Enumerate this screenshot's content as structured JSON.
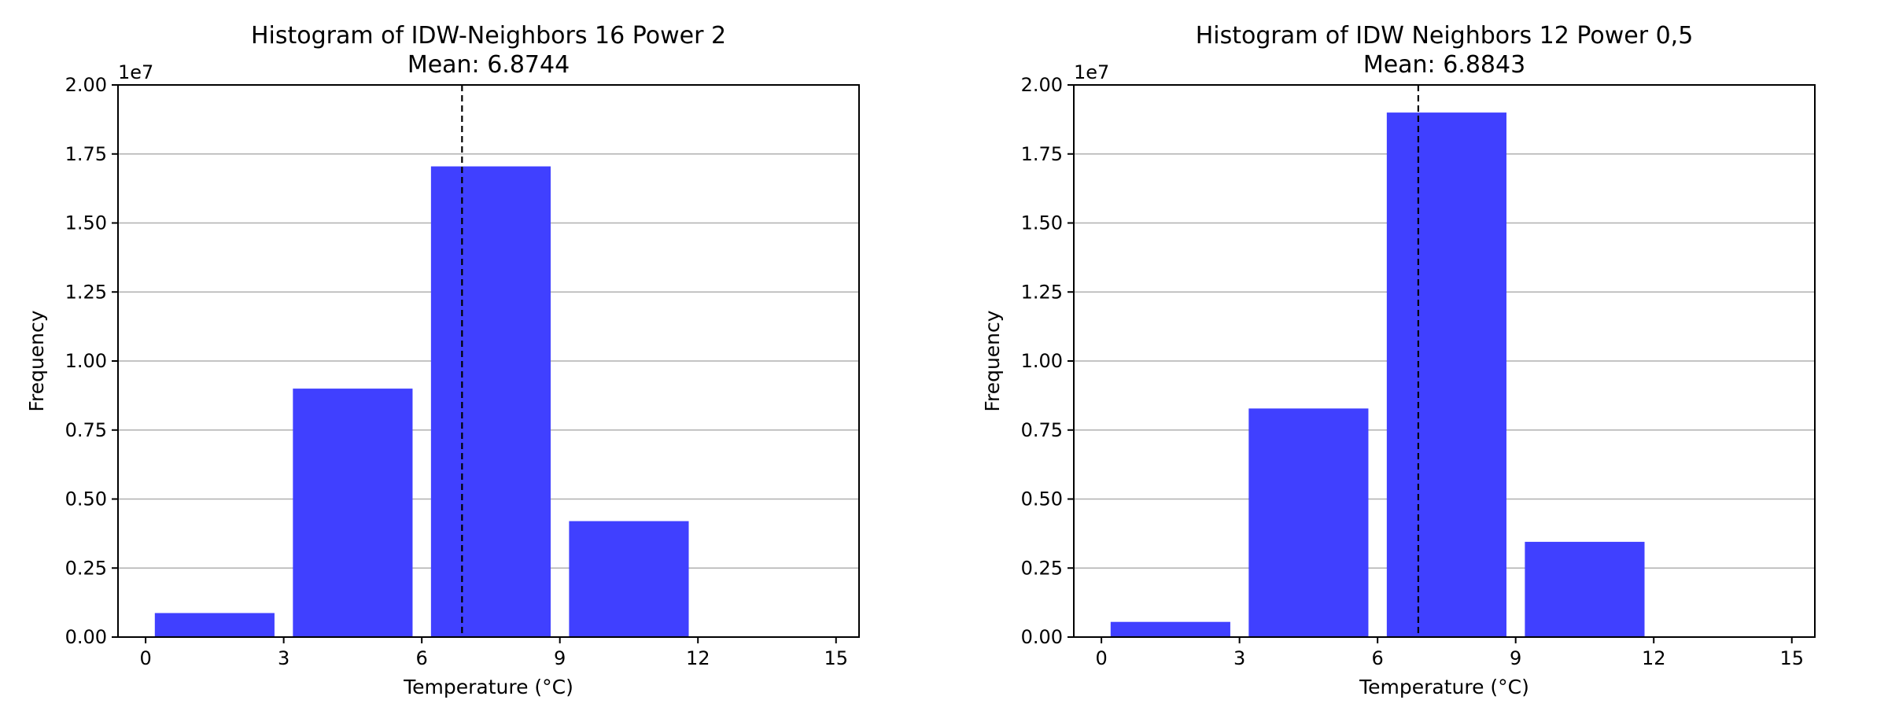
{
  "chart_data": [
    {
      "type": "bar",
      "title": "Histogram of IDW-Neighbors 16 Power 2",
      "subtitle": "Mean: 6.8744",
      "xlabel": "Temperature (°C)",
      "ylabel": "Frequency",
      "y_exponent_label": "1e7",
      "xlim": [
        -0.6,
        15.5
      ],
      "ylim": [
        0,
        2.0
      ],
      "x_ticks": [
        {
          "value": 0,
          "label": "0"
        },
        {
          "value": 3,
          "label": "3"
        },
        {
          "value": 6,
          "label": "6"
        },
        {
          "value": 9,
          "label": "9"
        },
        {
          "value": 12,
          "label": "12"
        },
        {
          "value": 15,
          "label": "15"
        }
      ],
      "y_ticks": [
        {
          "value": 0,
          "label": "0.00"
        },
        {
          "value": 0.25,
          "label": "0.25"
        },
        {
          "value": 0.5,
          "label": "0.50"
        },
        {
          "value": 0.75,
          "label": "0.75"
        },
        {
          "value": 1.0,
          "label": "1.00"
        },
        {
          "value": 1.25,
          "label": "1.25"
        },
        {
          "value": 1.5,
          "label": "1.50"
        },
        {
          "value": 1.75,
          "label": "1.75"
        },
        {
          "value": 2.0,
          "label": "2.00"
        }
      ],
      "grid": "y",
      "bar_color": "#4040ff",
      "mean_line": 6.8744,
      "bins": [
        {
          "x0": 0.2,
          "x1": 2.8,
          "value": 0.087
        },
        {
          "x0": 3.2,
          "x1": 5.8,
          "value": 0.9
        },
        {
          "x0": 6.2,
          "x1": 8.8,
          "value": 1.705
        },
        {
          "x0": 9.2,
          "x1": 11.8,
          "value": 0.42
        }
      ]
    },
    {
      "type": "bar",
      "title": "Histogram of IDW Neighbors 12 Power 0,5",
      "subtitle": "Mean: 6.8843",
      "xlabel": "Temperature (°C)",
      "ylabel": "Frequency",
      "y_exponent_label": "1e7",
      "xlim": [
        -0.6,
        15.5
      ],
      "ylim": [
        0,
        2.0
      ],
      "x_ticks": [
        {
          "value": 0,
          "label": "0"
        },
        {
          "value": 3,
          "label": "3"
        },
        {
          "value": 6,
          "label": "6"
        },
        {
          "value": 9,
          "label": "9"
        },
        {
          "value": 12,
          "label": "12"
        },
        {
          "value": 15,
          "label": "15"
        }
      ],
      "y_ticks": [
        {
          "value": 0,
          "label": "0.00"
        },
        {
          "value": 0.25,
          "label": "0.25"
        },
        {
          "value": 0.5,
          "label": "0.50"
        },
        {
          "value": 0.75,
          "label": "0.75"
        },
        {
          "value": 1.0,
          "label": "1.00"
        },
        {
          "value": 1.25,
          "label": "1.25"
        },
        {
          "value": 1.5,
          "label": "1.50"
        },
        {
          "value": 1.75,
          "label": "1.75"
        },
        {
          "value": 2.0,
          "label": "2.00"
        }
      ],
      "grid": "y",
      "bar_color": "#4040ff",
      "mean_line": 6.8843,
      "bins": [
        {
          "x0": 0.2,
          "x1": 2.8,
          "value": 0.055
        },
        {
          "x0": 3.2,
          "x1": 5.8,
          "value": 0.828
        },
        {
          "x0": 6.2,
          "x1": 8.8,
          "value": 1.9
        },
        {
          "x0": 9.2,
          "x1": 11.8,
          "value": 0.345
        }
      ]
    }
  ]
}
